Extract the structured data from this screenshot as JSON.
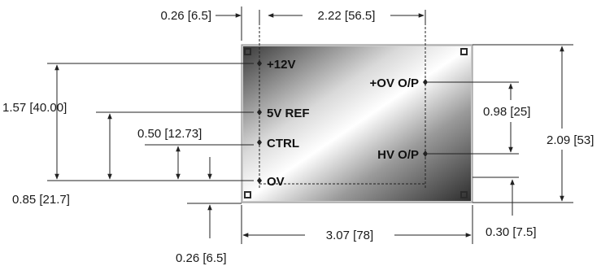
{
  "colors": {
    "line": "#222222",
    "text": "#1a1a1a",
    "board_light": "#ffffff",
    "board_dark": "#3a3a3a",
    "corner_pad": "#2b2b2b"
  },
  "pins": {
    "p12v": "+12V",
    "p5vref": "5V REF",
    "ctrl": "CTRL",
    "ov": "OV",
    "ov_op": "+OV O/P",
    "hv_op": "HV O/P"
  },
  "dimensions": {
    "top_left_offset": "0.26 [6.5]",
    "top_pin_spacing": "2.22 [56.5]",
    "left_12v_height": "1.57 [40.00]",
    "left_ctrl_height": "0.50 [12.73]",
    "left_5vref_height": "0.85 [21.7]",
    "bottom_left_offset": "0.26 [6.5]",
    "overall_width": "3.07 [78]",
    "right_output_spacing": "0.98 [25]",
    "overall_height": "2.09 [53]",
    "bottom_right_offset": "0.30 [7.5]"
  }
}
